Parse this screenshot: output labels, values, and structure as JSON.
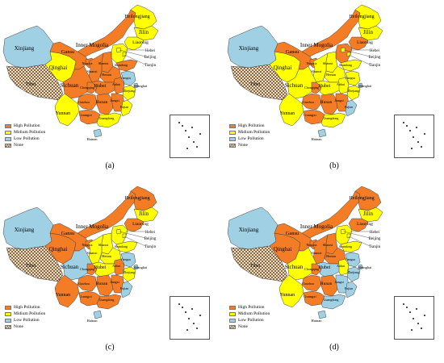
{
  "panels": [
    {
      "label": "(a)",
      "colors": {
        "xinjiang": "low",
        "tibet": "none",
        "qinghai": "mid",
        "gansu": "high",
        "innermongolia": "high",
        "heilongjiang": "mid",
        "jilin": "mid",
        "liaoning": "mid",
        "beijing": "mid",
        "tianjin": "mid",
        "hebei": "mid",
        "shanxi": "high",
        "shaanxi": "high",
        "ningxia": "high",
        "henan": "high",
        "shandong": "high",
        "sichuan": "high",
        "chongqing": "high",
        "hubei": "high",
        "yunnan": "mid",
        "guizhou": "high",
        "hunan": "high",
        "guangxi": "high",
        "guangdong": "mid",
        "jiangxi": "high",
        "anhui": "high",
        "jiangsu": "low",
        "zhejiang": "mid",
        "fujian": "mid",
        "shanghai": "low",
        "hainan": "low"
      }
    },
    {
      "label": "(b)",
      "colors": {
        "xinjiang": "low",
        "tibet": "none",
        "qinghai": "mid",
        "gansu": "high",
        "innermongolia": "high",
        "heilongjiang": "mid",
        "jilin": "mid",
        "liaoning": "high",
        "beijing": "mid",
        "tianjin": "mid",
        "hebei": "high",
        "shanxi": "mid",
        "shaanxi": "mid",
        "ningxia": "high",
        "henan": "mid",
        "shandong": "mid",
        "sichuan": "mid",
        "chongqing": "high",
        "hubei": "mid",
        "yunnan": "mid",
        "guizhou": "high",
        "hunan": "high",
        "guangxi": "high",
        "guangdong": "mid",
        "jiangxi": "high",
        "anhui": "mid",
        "jiangsu": "mid",
        "zhejiang": "mid",
        "fujian": "low",
        "shanghai": "low",
        "hainan": "low"
      }
    },
    {
      "label": "(c)",
      "colors": {
        "xinjiang": "low",
        "tibet": "none",
        "qinghai": "high",
        "gansu": "high",
        "innermongolia": "high",
        "heilongjiang": "high",
        "jilin": "mid",
        "liaoning": "high",
        "beijing": "mid",
        "tianjin": "mid",
        "hebei": "mid",
        "shanxi": "mid",
        "shaanxi": "mid",
        "ningxia": "high",
        "henan": "mid",
        "shandong": "mid",
        "sichuan": "low",
        "chongqing": "high",
        "hubei": "mid",
        "yunnan": "high",
        "guizhou": "high",
        "hunan": "high",
        "guangxi": "high",
        "guangdong": "high",
        "jiangxi": "high",
        "anhui": "high",
        "jiangsu": "low",
        "zhejiang": "mid",
        "fujian": "low",
        "shanghai": "low",
        "hainan": "low"
      }
    },
    {
      "label": "(d)",
      "colors": {
        "xinjiang": "low",
        "tibet": "none",
        "qinghai": "high",
        "gansu": "high",
        "innermongolia": "high",
        "heilongjiang": "high",
        "jilin": "mid",
        "liaoning": "high",
        "beijing": "mid",
        "tianjin": "mid",
        "hebei": "mid",
        "shanxi": "high",
        "shaanxi": "high",
        "ningxia": "high",
        "henan": "high",
        "shandong": "mid",
        "sichuan": "mid",
        "chongqing": "high",
        "hubei": "low",
        "yunnan": "mid",
        "guizhou": "high",
        "hunan": "high",
        "guangxi": "high",
        "guangdong": "low",
        "jiangxi": "low",
        "anhui": "mid",
        "jiangsu": "low",
        "zhejiang": "low",
        "fujian": "low",
        "shanghai": "low",
        "hainan": "low"
      }
    }
  ],
  "legend": [
    {
      "key": "high",
      "label": "High Pollution",
      "color": "#f47c25"
    },
    {
      "key": "mid",
      "label": "Midium Pollution",
      "color": "#ffff00"
    },
    {
      "key": "low",
      "label": "Low Pollution",
      "color": "#9fd0e4"
    },
    {
      "key": "none",
      "label": "None",
      "color": "#c8a47a"
    }
  ],
  "province_labels": {
    "xinjiang": "Xinjiang",
    "tibet": "Tibet",
    "qinghai": "Qinghai",
    "gansu": "Gansu",
    "innermongolia": "Inner Mogolia",
    "heilongjiang": "Heilongjiang",
    "jilin": "Jilin",
    "liaoning": "Liaoning",
    "beijing": "Beijing",
    "tianjin": "Tianjin",
    "hebei": "Hebei",
    "shanxi": "Shanxi",
    "shaanxi": "Shaanxi",
    "ningxia": "Ningxia",
    "henan": "Henan",
    "shandong": "Shandong",
    "sichuan": "Sichuan",
    "chongqing": "Chongqing",
    "hubei": "Hubei",
    "yunnan": "Yunnan",
    "guizhou": "Guizhou",
    "hunan": "Hunan",
    "guangxi": "Guangxi",
    "guangdong": "Guangdong",
    "jiangxi": "Jiangxi",
    "anhui": "Anhui",
    "jiangsu": "Jiangsu",
    "zhejiang": "Zhejiang",
    "fujian": "Fujian",
    "shanghai": "Shanghai",
    "hainan": "Hainan"
  }
}
